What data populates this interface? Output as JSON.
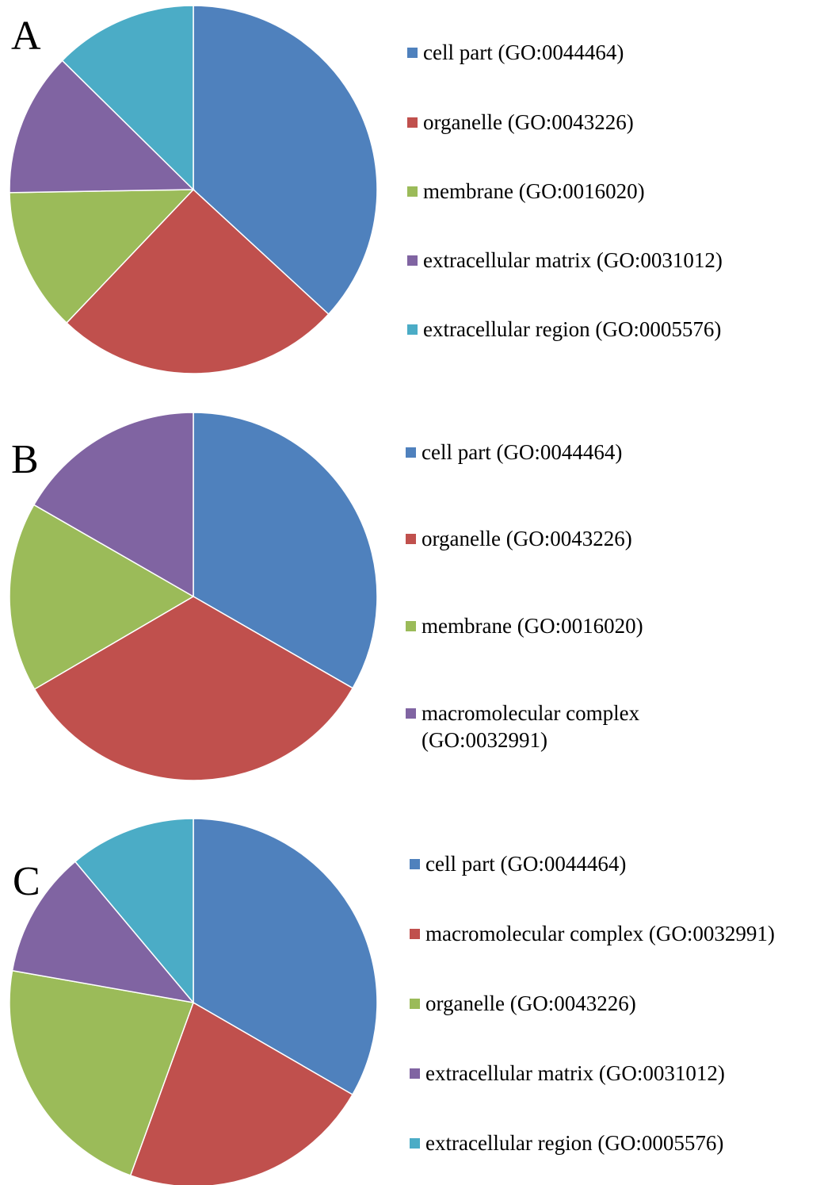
{
  "colors": {
    "blue": "#4f81bd",
    "red": "#c0504d",
    "green": "#9bbb59",
    "purple": "#8064a2",
    "teal": "#4bacc6"
  },
  "chart_data": [
    {
      "type": "pie",
      "panel_label": "A",
      "legend_position": "right",
      "slices": [
        {
          "label": "cell part (GO:0044464)",
          "value": 35,
          "color": "#4f81bd"
        },
        {
          "label": "organelle (GO:0043226)",
          "value": 24,
          "color": "#c0504d"
        },
        {
          "label": "membrane (GO:0016020)",
          "value": 12,
          "color": "#9bbb59"
        },
        {
          "label": "extracellular matrix (GO:0031012)",
          "value": 12,
          "color": "#8064a2"
        },
        {
          "label": "extracellular region (GO:0005576)",
          "value": 12,
          "color": "#4bacc6"
        }
      ]
    },
    {
      "type": "pie",
      "panel_label": "B",
      "legend_position": "right",
      "slices": [
        {
          "label": "cell part (GO:0044464)",
          "value": 33.3,
          "color": "#4f81bd"
        },
        {
          "label": "organelle (GO:0043226)",
          "value": 33.3,
          "color": "#c0504d"
        },
        {
          "label": "membrane (GO:0016020)",
          "value": 16.7,
          "color": "#9bbb59"
        },
        {
          "label": "macromolecular complex (GO:0032991)",
          "value": 16.7,
          "color": "#8064a2"
        }
      ]
    },
    {
      "type": "pie",
      "panel_label": "C",
      "legend_position": "right",
      "slices": [
        {
          "label": "cell part (GO:0044464)",
          "value": 33.3,
          "color": "#4f81bd"
        },
        {
          "label": "macromolecular complex (GO:0032991)",
          "value": 22.2,
          "color": "#c0504d"
        },
        {
          "label": "organelle (GO:0043226)",
          "value": 22.2,
          "color": "#9bbb59"
        },
        {
          "label": "extracellular matrix (GO:0031012)",
          "value": 11.1,
          "color": "#8064a2"
        },
        {
          "label": "extracellular region (GO:0005576)",
          "value": 11.1,
          "color": "#4bacc6"
        }
      ]
    }
  ]
}
